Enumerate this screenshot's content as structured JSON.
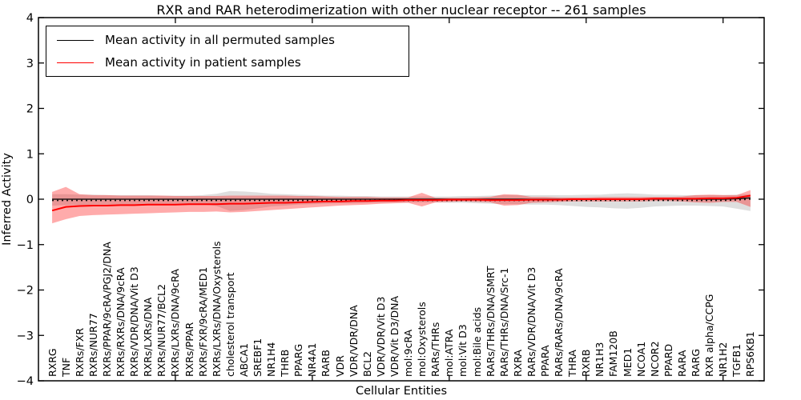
{
  "title": "RXR and RAR heterodimerization with other nuclear receptor -- 261 samples",
  "axes": {
    "xlabel": "Cellular Entities",
    "ylabel": "Inferred Activity",
    "ylim": [
      -4,
      4
    ],
    "yticks": [
      {
        "v": 4,
        "label": "4"
      },
      {
        "v": 3,
        "label": "3"
      },
      {
        "v": 2,
        "label": "2"
      },
      {
        "v": 1,
        "label": "1"
      },
      {
        "v": 0,
        "label": "0"
      },
      {
        "v": -1,
        "label": "−1"
      },
      {
        "v": -2,
        "label": "−2"
      },
      {
        "v": -3,
        "label": "−3"
      },
      {
        "v": -4,
        "label": "−4"
      }
    ]
  },
  "legend": {
    "items": [
      {
        "label": "Mean activity in all permuted samples",
        "color": "#000000"
      },
      {
        "label": "Mean activity in patient samples",
        "color": "#ff0000"
      }
    ]
  },
  "chart_data": {
    "type": "line",
    "title": "RXR and RAR heterodimerization with other nuclear receptor -- 261 samples",
    "xlabel": "Cellular Entities",
    "ylabel": "Inferred Activity",
    "ylim": [
      -4,
      4
    ],
    "grid": false,
    "legend_position": "upper left",
    "categories": [
      "RXRG",
      "TNF",
      "RXRs/FXR",
      "RXRs/NUR77",
      "RXRs/PPAR/9cRA/PGJ2/DNA",
      "RXRs/RXRs/DNA/9cRA",
      "RXRs/VDR/DNA/Vit D3",
      "RXRs/LXRs/DNA",
      "RXRs/NUR77/BCL2",
      "RXRs/LXRs/DNA/9cRA",
      "RXRs/PPAR",
      "RXRs/FXR/9cRA/MED1",
      "RXRs/LXRs/DNA/Oxysterols",
      "cholesterol transport",
      "ABCA1",
      "SREBF1",
      "NR1H4",
      "THRB",
      "PPARG",
      "NR4A1",
      "RARB",
      "VDR",
      "VDR/VDR/DNA",
      "BCL2",
      "VDR/VDR/Vit D3",
      "VDR/Vit D3/DNA",
      "mol:9cRA",
      "mol:Oxysterols",
      "RARs/THRs",
      "mol:ATRA",
      "mol:Vit D3",
      "mol:Bile acids",
      "RARs/THRs/DNA/SMRT",
      "RARs/THRs/DNA/Src-1",
      "RXRA",
      "RARs/VDR/DNA/Vit D3",
      "PPARA",
      "RARs/RARs/DNA/9cRA",
      "THRA",
      "RXRB",
      "NR1H3",
      "FAM120B",
      "MED1",
      "NCOA1",
      "NCOR2",
      "PPARD",
      "RARA",
      "RARG",
      "RXR alpha/CCPG",
      "NR1H2",
      "TGFB1",
      "RPS6KB1"
    ],
    "series": [
      {
        "name": "Mean activity in all permuted samples",
        "color": "#000000",
        "line_styles": [
          "solid",
          "dotted"
        ],
        "values": [
          0,
          0,
          0,
          0,
          0,
          0,
          0,
          0,
          0,
          0,
          0,
          0,
          0,
          0,
          0,
          0,
          0,
          0,
          0,
          0,
          0,
          0,
          0,
          0,
          0,
          0,
          0,
          0,
          0,
          0,
          0,
          0,
          0,
          0,
          0,
          0,
          0,
          0,
          0,
          0,
          0,
          0,
          0,
          0,
          0,
          0,
          0,
          0,
          0,
          0,
          0.01,
          0.03
        ],
        "band": {
          "fill": "rgba(0,0,0,0.13)",
          "upper": [
            0.11,
            0.11,
            0.1,
            0.1,
            0.09,
            0.09,
            0.09,
            0.09,
            0.08,
            0.08,
            0.08,
            0.09,
            0.12,
            0.18,
            0.17,
            0.15,
            0.12,
            0.11,
            0.1,
            0.09,
            0.08,
            0.08,
            0.07,
            0.07,
            0.06,
            0.06,
            0.06,
            0.06,
            0.06,
            0.06,
            0.07,
            0.07,
            0.08,
            0.09,
            0.09,
            0.09,
            0.09,
            0.09,
            0.09,
            0.1,
            0.1,
            0.12,
            0.13,
            0.12,
            0.1,
            0.1,
            0.09,
            0.09,
            0.09,
            0.09,
            0.1,
            0.11
          ],
          "lower": [
            -0.14,
            -0.13,
            -0.13,
            -0.12,
            -0.12,
            -0.11,
            -0.11,
            -0.11,
            -0.1,
            -0.1,
            -0.1,
            -0.11,
            -0.15,
            -0.26,
            -0.24,
            -0.2,
            -0.16,
            -0.14,
            -0.12,
            -0.11,
            -0.1,
            -0.09,
            -0.09,
            -0.08,
            -0.08,
            -0.07,
            -0.07,
            -0.07,
            -0.07,
            -0.08,
            -0.08,
            -0.09,
            -0.1,
            -0.11,
            -0.11,
            -0.12,
            -0.12,
            -0.13,
            -0.15,
            -0.17,
            -0.18,
            -0.2,
            -0.21,
            -0.19,
            -0.16,
            -0.15,
            -0.14,
            -0.14,
            -0.15,
            -0.16,
            -0.21,
            -0.26
          ]
        }
      },
      {
        "name": "Mean activity in patient samples",
        "color": "#ff0000",
        "line_styles": [
          "solid"
        ],
        "values": [
          -0.25,
          -0.17,
          -0.15,
          -0.14,
          -0.14,
          -0.13,
          -0.13,
          -0.12,
          -0.12,
          -0.12,
          -0.11,
          -0.11,
          -0.11,
          -0.1,
          -0.1,
          -0.09,
          -0.08,
          -0.08,
          -0.07,
          -0.06,
          -0.05,
          -0.05,
          -0.04,
          -0.04,
          -0.03,
          -0.03,
          -0.02,
          -0.02,
          -0.02,
          -0.01,
          -0.01,
          -0.01,
          -0.02,
          -0.02,
          -0.02,
          -0.01,
          -0.01,
          -0.01,
          0.0,
          0.0,
          0.0,
          0.0,
          0.0,
          0.0,
          0.01,
          0.01,
          0.01,
          0.01,
          0.02,
          0.02,
          0.03,
          0.08
        ],
        "band": {
          "fill": "rgba(255,0,0,0.33)",
          "upper": [
            0.16,
            0.27,
            0.11,
            0.09,
            0.09,
            0.08,
            0.08,
            0.08,
            0.08,
            0.07,
            0.07,
            0.07,
            0.07,
            0.08,
            0.08,
            0.08,
            0.08,
            0.08,
            0.07,
            0.07,
            0.06,
            0.05,
            0.05,
            0.05,
            0.04,
            0.04,
            0.04,
            0.14,
            0.03,
            0.03,
            0.03,
            0.04,
            0.05,
            0.11,
            0.1,
            0.05,
            0.05,
            0.04,
            0.04,
            0.04,
            0.05,
            0.05,
            0.05,
            0.05,
            0.05,
            0.05,
            0.06,
            0.09,
            0.1,
            0.09,
            0.09,
            0.2
          ],
          "lower": [
            -0.53,
            -0.44,
            -0.37,
            -0.35,
            -0.34,
            -0.33,
            -0.32,
            -0.31,
            -0.3,
            -0.29,
            -0.28,
            -0.28,
            -0.27,
            -0.29,
            -0.28,
            -0.26,
            -0.24,
            -0.22,
            -0.2,
            -0.18,
            -0.16,
            -0.14,
            -0.13,
            -0.12,
            -0.1,
            -0.09,
            -0.08,
            -0.16,
            -0.07,
            -0.06,
            -0.05,
            -0.06,
            -0.07,
            -0.14,
            -0.13,
            -0.08,
            -0.07,
            -0.06,
            -0.05,
            -0.05,
            -0.05,
            -0.05,
            -0.05,
            -0.05,
            -0.04,
            -0.04,
            -0.05,
            -0.07,
            -0.08,
            -0.06,
            -0.06,
            -0.17
          ]
        }
      }
    ]
  }
}
